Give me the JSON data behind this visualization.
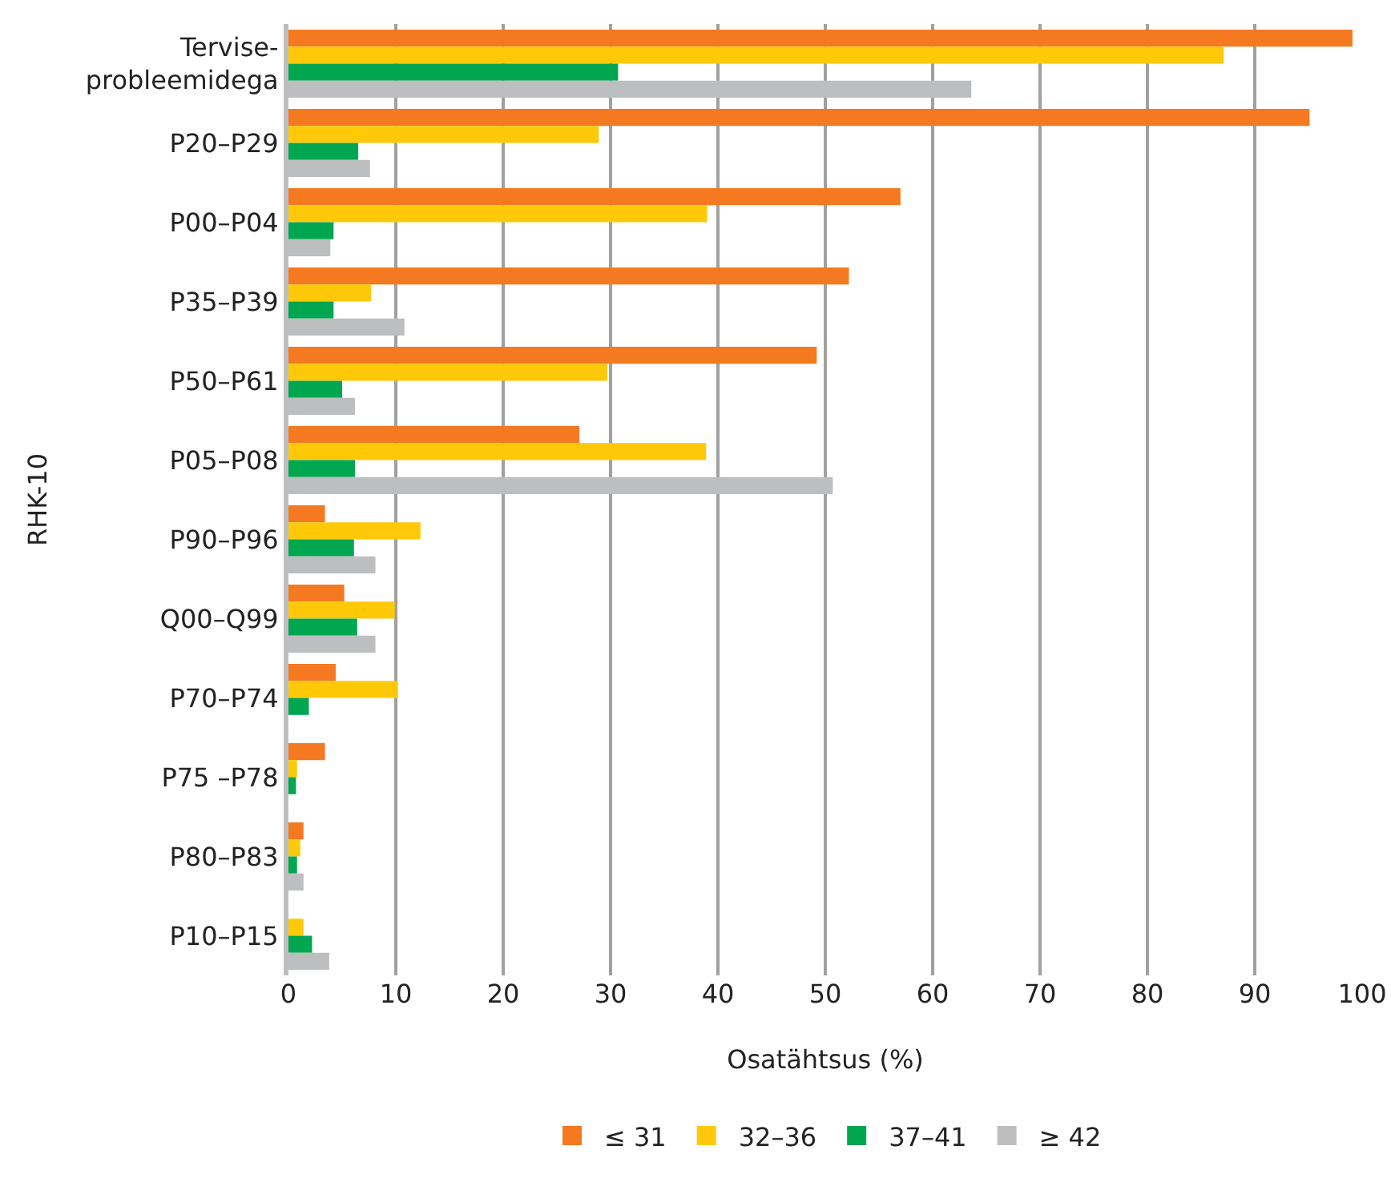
{
  "chart_data": {
    "type": "bar",
    "orientation": "horizontal",
    "xlabel": "Osatähtsus (%)",
    "ylabel": "RHK-10",
    "categories": [
      "Tervise-\nprobleemidega",
      "P20–P29",
      "P00–P04",
      "P35–P39",
      "P50–P61",
      "P05–P08",
      "P90–P96",
      "Q00–Q99",
      "P70–P74",
      "P75 –P78",
      "P80–P83",
      "P10–P15"
    ],
    "series": [
      {
        "name": "≤ 31",
        "color": "#f47920",
        "values": [
          99.1,
          95.1,
          57.0,
          52.2,
          49.2,
          27.1,
          3.4,
          5.2,
          4.4,
          3.4,
          1.4,
          null
        ]
      },
      {
        "name": "32–36",
        "color": "#ffc90a",
        "values": [
          87.1,
          28.9,
          39.0,
          7.7,
          29.7,
          38.9,
          12.3,
          9.9,
          10.2,
          0.8,
          1.1,
          1.4
        ]
      },
      {
        "name": "37–41",
        "color": "#00a650",
        "values": [
          30.7,
          6.5,
          4.2,
          4.2,
          5.0,
          6.2,
          6.1,
          6.4,
          1.9,
          0.7,
          0.8,
          2.2
        ]
      },
      {
        "name": "≥ 42",
        "color": "#bcbec0",
        "values": [
          63.6,
          7.6,
          3.9,
          10.8,
          6.2,
          50.7,
          8.1,
          8.1,
          null,
          null,
          1.4,
          3.8
        ]
      }
    ],
    "xlim": [
      0,
      100
    ],
    "xticks": [
      0,
      10,
      20,
      30,
      40,
      50,
      60,
      70,
      80,
      90,
      100
    ],
    "grid": "x",
    "legend": "bottom"
  }
}
